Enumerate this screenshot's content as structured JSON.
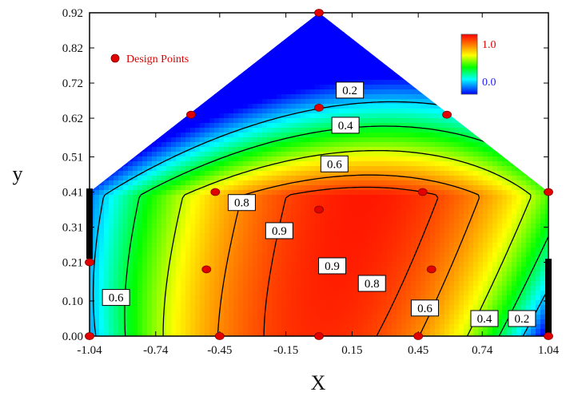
{
  "chart_data": {
    "type": "heatmap",
    "subtype": "filled-contour",
    "xlabel": "X",
    "ylabel": "y",
    "x_ticks": [
      "-1.04",
      "-0.74",
      "-0.45",
      "-0.15",
      "0.15",
      "0.45",
      "0.74",
      "1.04"
    ],
    "y_ticks": [
      "0.00",
      "0.10",
      "0.21",
      "0.31",
      "0.41",
      "0.51",
      "0.62",
      "0.72",
      "0.82",
      "0.92"
    ],
    "xlim": [
      -1.04,
      1.04
    ],
    "ylim": [
      0.0,
      0.92
    ],
    "grid": false,
    "colorbar": {
      "max_label": "1.0",
      "min_label": "0.0",
      "max_color": "#e00000",
      "min_color": "#2020ff",
      "colors": [
        "#0000ff",
        "#00ffff",
        "#00ff00",
        "#ffff00",
        "#ff8000",
        "#ff0000"
      ]
    },
    "legend": {
      "label": "Design Points",
      "position": "top-left",
      "marker_color": "#e00000"
    },
    "region_vertices": [
      [
        -1.04,
        0.0
      ],
      [
        1.04,
        0.0
      ],
      [
        1.04,
        0.41
      ],
      [
        0.0,
        0.92
      ],
      [
        -1.04,
        0.41
      ]
    ],
    "design_points": [
      [
        -1.04,
        0.0
      ],
      [
        -0.45,
        0.0
      ],
      [
        0.0,
        0.0
      ],
      [
        0.45,
        0.0
      ],
      [
        1.04,
        0.0
      ],
      [
        -1.04,
        0.21
      ],
      [
        -0.51,
        0.19
      ],
      [
        0.51,
        0.19
      ],
      [
        0.0,
        0.36
      ],
      [
        -0.47,
        0.41
      ],
      [
        0.47,
        0.41
      ],
      [
        1.04,
        0.41
      ],
      [
        -0.58,
        0.63
      ],
      [
        0.0,
        0.65
      ],
      [
        0.58,
        0.63
      ],
      [
        0.0,
        0.92
      ]
    ],
    "contour_labels": [
      {
        "text": "0.2",
        "x": 0.14,
        "y": 0.7
      },
      {
        "text": "0.4",
        "x": 0.12,
        "y": 0.6
      },
      {
        "text": "0.6",
        "x": 0.07,
        "y": 0.49
      },
      {
        "text": "0.8",
        "x": -0.35,
        "y": 0.38
      },
      {
        "text": "0.9",
        "x": -0.18,
        "y": 0.3
      },
      {
        "text": "0.9",
        "x": 0.06,
        "y": 0.2
      },
      {
        "text": "0.8",
        "x": 0.24,
        "y": 0.15
      },
      {
        "text": "0.6",
        "x": 0.48,
        "y": 0.08
      },
      {
        "text": "0.4",
        "x": 0.75,
        "y": 0.05
      },
      {
        "text": "0.2",
        "x": 0.92,
        "y": 0.05
      },
      {
        "text": "0.6",
        "x": -0.92,
        "y": 0.11
      }
    ],
    "contour_levels": [
      0.2,
      0.4,
      0.6,
      0.8,
      0.9
    ],
    "constraint_bars": [
      {
        "x": -1.04,
        "y_range": [
          0.22,
          0.42
        ]
      },
      {
        "x": 1.04,
        "y_range": [
          0.0,
          0.22
        ]
      }
    ]
  }
}
